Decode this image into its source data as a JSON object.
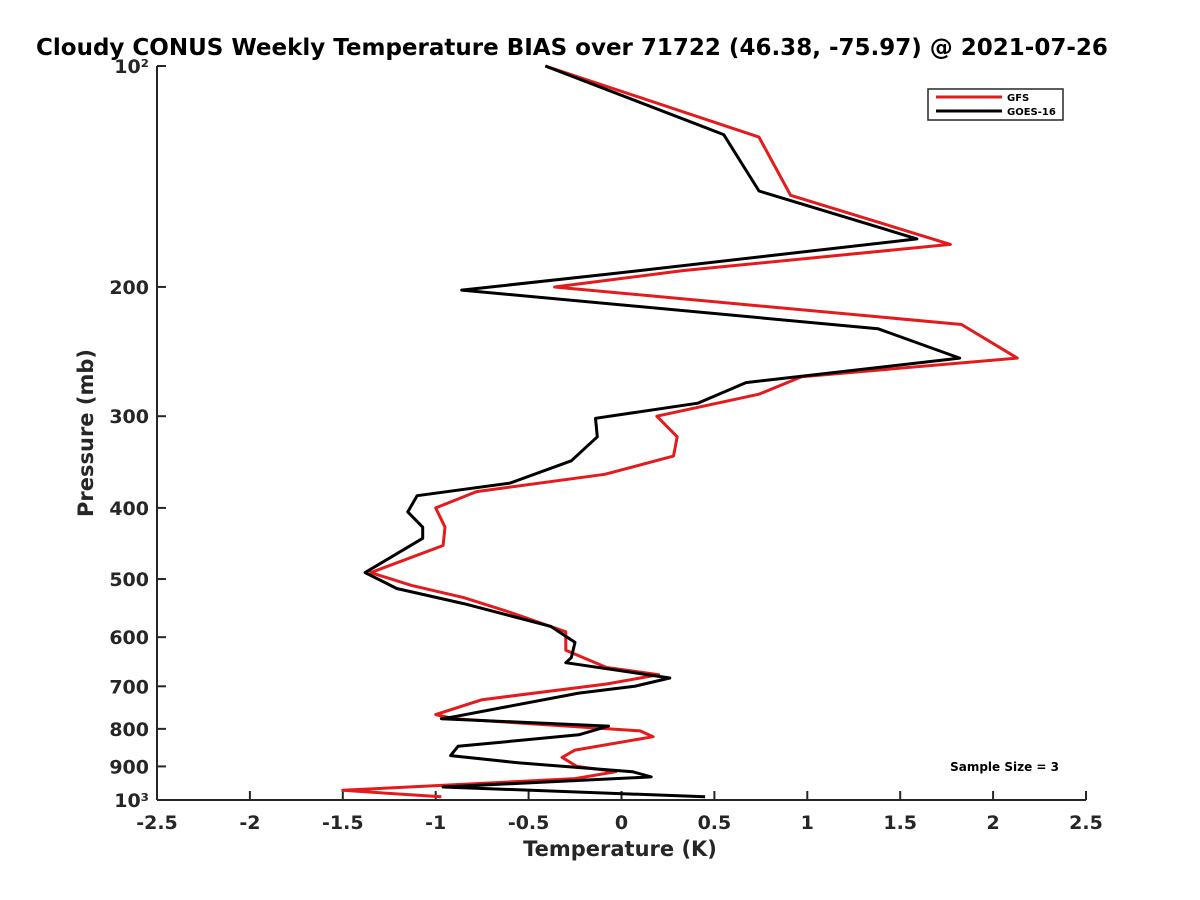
{
  "chart_data": {
    "type": "line",
    "title": "Cloudy CONUS Weekly Temperature BIAS over 71722 (46.38, -75.97) @ 2021-07-26",
    "xlabel": "Temperature (K)",
    "ylabel": "Pressure (mb)",
    "xlim": [
      -2.5,
      2.5
    ],
    "ylim": [
      100,
      1000
    ],
    "yscale": "log",
    "y_reversed": true,
    "xticks": [
      -2.5,
      -2,
      -1.5,
      -1,
      -0.5,
      0,
      0.5,
      1,
      1.5,
      2,
      2.5
    ],
    "xtick_labels": [
      "-2.5",
      "-2",
      "-1.5",
      "-1",
      "-0.5",
      "0",
      "0.5",
      "1",
      "1.5",
      "2",
      "2.5"
    ],
    "yticks": [
      100,
      200,
      300,
      400,
      500,
      600,
      700,
      800,
      900,
      1000
    ],
    "ytick_labels": [
      "10²",
      "200",
      "300",
      "400",
      "500",
      "600",
      "700",
      "800",
      "900",
      "10³"
    ],
    "legend_position": "top-right",
    "annotation": "Sample Size = 3",
    "series": [
      {
        "name": "GFS",
        "color": "#e41a1c",
        "points": [
          [
            -0.41,
            100
          ],
          [
            0.74,
            125
          ],
          [
            0.91,
            150
          ],
          [
            1.77,
            175
          ],
          [
            0.33,
            190
          ],
          [
            -0.36,
            200
          ],
          [
            1.83,
            225
          ],
          [
            2.13,
            250
          ],
          [
            0.97,
            265
          ],
          [
            0.74,
            280
          ],
          [
            0.19,
            300
          ],
          [
            0.3,
            320
          ],
          [
            0.28,
            340
          ],
          [
            -0.09,
            360
          ],
          [
            -0.78,
            380
          ],
          [
            -1.0,
            400
          ],
          [
            -0.95,
            425
          ],
          [
            -0.96,
            450
          ],
          [
            -1.35,
            490
          ],
          [
            -1.13,
            510
          ],
          [
            -0.85,
            530
          ],
          [
            -0.6,
            555
          ],
          [
            -0.3,
            590
          ],
          [
            -0.3,
            625
          ],
          [
            -0.08,
            660
          ],
          [
            0.2,
            675
          ],
          [
            -0.08,
            695
          ],
          [
            -0.75,
            730
          ],
          [
            -1.0,
            765
          ],
          [
            -0.9,
            775
          ],
          [
            0.1,
            805
          ],
          [
            0.17,
            820
          ],
          [
            -0.25,
            855
          ],
          [
            -0.32,
            875
          ],
          [
            -0.24,
            900
          ],
          [
            -0.03,
            915
          ],
          [
            -0.25,
            935
          ],
          [
            -0.78,
            950
          ],
          [
            -1.5,
            970
          ],
          [
            -0.97,
            990
          ]
        ]
      },
      {
        "name": "GOES-16",
        "color": "#000000",
        "points": [
          [
            -0.41,
            100
          ],
          [
            0.55,
            124
          ],
          [
            0.74,
            148
          ],
          [
            1.59,
            172
          ],
          [
            -0.06,
            192
          ],
          [
            -0.86,
            202
          ],
          [
            1.38,
            228
          ],
          [
            1.82,
            250
          ],
          [
            0.67,
            270
          ],
          [
            0.41,
            288
          ],
          [
            -0.14,
            302
          ],
          [
            -0.13,
            320
          ],
          [
            -0.27,
            345
          ],
          [
            -0.6,
            370
          ],
          [
            -1.1,
            385
          ],
          [
            -1.15,
            405
          ],
          [
            -1.07,
            425
          ],
          [
            -1.07,
            440
          ],
          [
            -1.38,
            490
          ],
          [
            -1.21,
            515
          ],
          [
            -0.85,
            540
          ],
          [
            -0.38,
            580
          ],
          [
            -0.25,
            610
          ],
          [
            -0.27,
            640
          ],
          [
            -0.3,
            650
          ],
          [
            0.26,
            682
          ],
          [
            0.07,
            700
          ],
          [
            -0.23,
            715
          ],
          [
            -0.9,
            770
          ],
          [
            -0.97,
            775
          ],
          [
            -0.07,
            793
          ],
          [
            -0.23,
            815
          ],
          [
            -0.88,
            845
          ],
          [
            -0.92,
            870
          ],
          [
            -0.55,
            890
          ],
          [
            0.06,
            915
          ],
          [
            0.16,
            930
          ],
          [
            -0.96,
            960
          ],
          [
            0.45,
            990
          ]
        ]
      }
    ]
  }
}
